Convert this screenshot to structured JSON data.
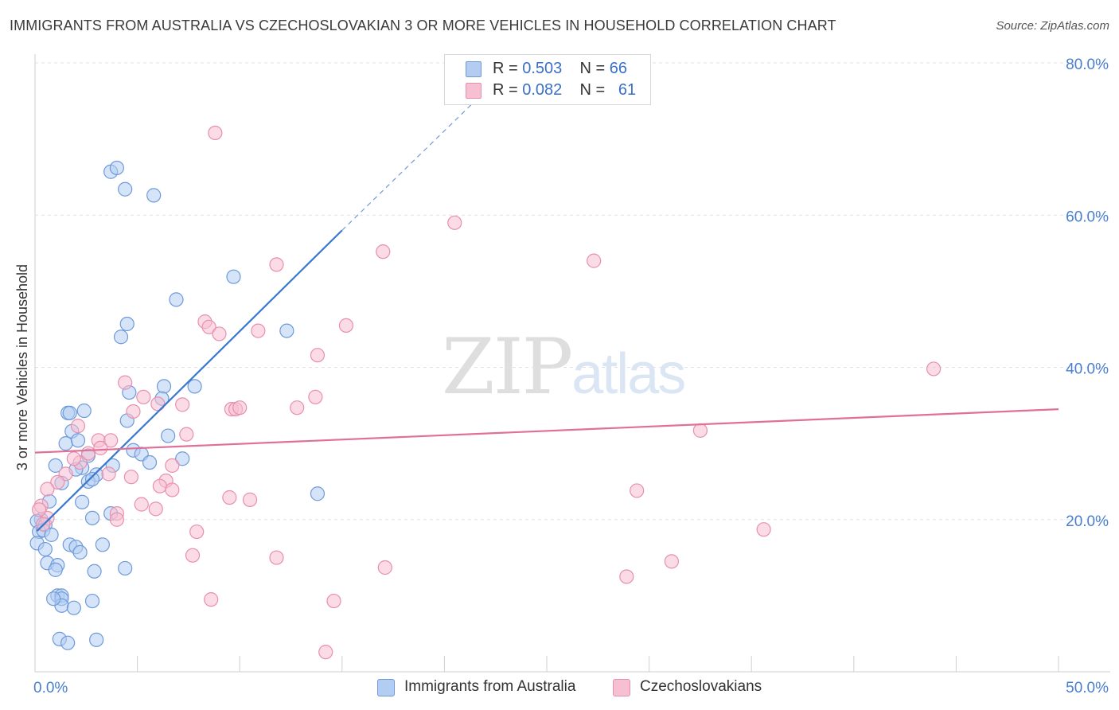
{
  "header": {
    "title": "IMMIGRANTS FROM AUSTRALIA VS CZECHOSLOVAKIAN 3 OR MORE VEHICLES IN HOUSEHOLD CORRELATION CHART",
    "source": "Source: ZipAtlas.com"
  },
  "watermark": {
    "zip": "ZIP",
    "atlas": "atlas"
  },
  "legend": {
    "rows": [
      {
        "r_label": "R = ",
        "r_value": "0.503",
        "n_label": "N = ",
        "n_value": "66"
      },
      {
        "r_label": "R = ",
        "r_value": "0.082",
        "n_label": "N = ",
        "n_value": "61"
      }
    ]
  },
  "bottom_legend": {
    "series1": "Immigrants from Australia",
    "series2": "Czechoslovakians"
  },
  "colors": {
    "blue_fill": "#b3cdf2",
    "blue_stroke": "#6f9ad8",
    "blue_line": "#3a78d0",
    "pink_fill": "#f7c0d2",
    "pink_stroke": "#e88fae",
    "pink_line": "#e07098",
    "axis_text": "#4a7fcf",
    "grid": "#e2e2e2"
  },
  "chart_data": {
    "type": "scatter",
    "title": "IMMIGRANTS FROM AUSTRALIA VS CZECHOSLOVAKIAN 3 OR MORE VEHICLES IN HOUSEHOLD CORRELATION CHART",
    "xlabel": "",
    "ylabel": "3 or more Vehicles in Household",
    "xlim": [
      0,
      50
    ],
    "ylim": [
      0,
      80
    ],
    "x_tick_labels": [
      "0.0%",
      "50.0%"
    ],
    "y_ticks": [
      20,
      40,
      60,
      80
    ],
    "y_tick_labels": [
      "20.0%",
      "40.0%",
      "60.0%",
      "80.0%"
    ],
    "series": [
      {
        "name": "Immigrants from Australia",
        "color": "#6f9ad8",
        "r": 0.503,
        "n": 66,
        "trend": {
          "x0": 0.1,
          "y0": 18.5,
          "x1": 15.0,
          "y1": 58.0,
          "dash_x1": 21.5,
          "dash_y1": 75.0
        },
        "points": [
          [
            3.7,
            65.7
          ],
          [
            4.0,
            66.2
          ],
          [
            4.4,
            63.4
          ],
          [
            5.8,
            62.6
          ],
          [
            9.7,
            51.9
          ],
          [
            6.9,
            48.9
          ],
          [
            4.5,
            45.7
          ],
          [
            4.2,
            44.0
          ],
          [
            12.3,
            44.8
          ],
          [
            4.6,
            36.7
          ],
          [
            6.3,
            37.5
          ],
          [
            7.8,
            37.5
          ],
          [
            6.2,
            35.9
          ],
          [
            1.6,
            34.0
          ],
          [
            1.7,
            34.0
          ],
          [
            2.4,
            34.3
          ],
          [
            4.5,
            33.0
          ],
          [
            1.8,
            31.6
          ],
          [
            6.5,
            31.0
          ],
          [
            1.5,
            30.0
          ],
          [
            2.1,
            30.4
          ],
          [
            4.8,
            29.1
          ],
          [
            5.2,
            28.6
          ],
          [
            7.2,
            28.0
          ],
          [
            2.6,
            28.4
          ],
          [
            5.6,
            27.5
          ],
          [
            1.0,
            27.1
          ],
          [
            2.3,
            26.8
          ],
          [
            3.8,
            27.1
          ],
          [
            2.0,
            26.6
          ],
          [
            3.0,
            25.9
          ],
          [
            2.6,
            25.0
          ],
          [
            2.8,
            25.3
          ],
          [
            1.3,
            24.8
          ],
          [
            13.8,
            23.4
          ],
          [
            0.7,
            22.4
          ],
          [
            2.3,
            22.3
          ],
          [
            3.7,
            20.8
          ],
          [
            2.8,
            20.2
          ],
          [
            0.3,
            20.0
          ],
          [
            0.1,
            19.8
          ],
          [
            0.5,
            19.3
          ],
          [
            0.2,
            18.4
          ],
          [
            0.4,
            18.6
          ],
          [
            0.8,
            18.0
          ],
          [
            0.1,
            16.9
          ],
          [
            0.5,
            16.1
          ],
          [
            1.7,
            16.7
          ],
          [
            2.0,
            16.4
          ],
          [
            3.3,
            16.7
          ],
          [
            2.2,
            15.7
          ],
          [
            0.6,
            14.3
          ],
          [
            1.1,
            14.0
          ],
          [
            1.0,
            13.4
          ],
          [
            2.9,
            13.2
          ],
          [
            4.4,
            13.6
          ],
          [
            1.1,
            10.0
          ],
          [
            1.3,
            10.0
          ],
          [
            1.3,
            9.6
          ],
          [
            2.8,
            9.3
          ],
          [
            1.3,
            8.7
          ],
          [
            1.9,
            8.4
          ],
          [
            1.2,
            4.3
          ],
          [
            1.6,
            3.8
          ],
          [
            3.0,
            4.2
          ],
          [
            0.9,
            9.6
          ]
        ]
      },
      {
        "name": "Czechoslovakians",
        "color": "#e88fae",
        "r": 0.082,
        "n": 61,
        "trend": {
          "x0": 0.0,
          "y0": 28.8,
          "x1": 50.0,
          "y1": 34.5
        },
        "points": [
          [
            8.8,
            70.8
          ],
          [
            20.5,
            59.0
          ],
          [
            17.0,
            55.2
          ],
          [
            27.3,
            54.0
          ],
          [
            11.8,
            53.5
          ],
          [
            8.3,
            46.0
          ],
          [
            8.5,
            45.3
          ],
          [
            9.0,
            44.4
          ],
          [
            10.9,
            44.8
          ],
          [
            15.2,
            45.5
          ],
          [
            13.8,
            41.6
          ],
          [
            4.4,
            38.0
          ],
          [
            43.9,
            39.8
          ],
          [
            5.3,
            36.1
          ],
          [
            6.0,
            35.2
          ],
          [
            7.2,
            35.1
          ],
          [
            9.6,
            34.5
          ],
          [
            9.8,
            34.5
          ],
          [
            10.0,
            34.7
          ],
          [
            12.8,
            34.7
          ],
          [
            13.7,
            36.1
          ],
          [
            4.8,
            34.2
          ],
          [
            7.4,
            31.2
          ],
          [
            2.1,
            32.3
          ],
          [
            32.5,
            31.7
          ],
          [
            3.1,
            30.4
          ],
          [
            3.7,
            30.4
          ],
          [
            2.2,
            27.5
          ],
          [
            1.9,
            28.0
          ],
          [
            2.6,
            28.7
          ],
          [
            3.2,
            29.4
          ],
          [
            6.7,
            27.1
          ],
          [
            1.5,
            26.0
          ],
          [
            3.6,
            26.0
          ],
          [
            4.7,
            25.6
          ],
          [
            6.4,
            25.1
          ],
          [
            1.1,
            24.9
          ],
          [
            6.1,
            24.4
          ],
          [
            6.7,
            23.9
          ],
          [
            9.5,
            22.9
          ],
          [
            10.5,
            22.6
          ],
          [
            29.4,
            23.8
          ],
          [
            0.6,
            24.0
          ],
          [
            5.2,
            22.0
          ],
          [
            5.9,
            21.4
          ],
          [
            0.3,
            21.8
          ],
          [
            4.0,
            20.8
          ],
          [
            4.0,
            20.0
          ],
          [
            0.6,
            20.2
          ],
          [
            0.4,
            19.4
          ],
          [
            7.9,
            18.4
          ],
          [
            35.6,
            18.7
          ],
          [
            7.7,
            15.3
          ],
          [
            11.8,
            15.0
          ],
          [
            17.1,
            13.7
          ],
          [
            31.1,
            14.5
          ],
          [
            28.9,
            12.5
          ],
          [
            8.6,
            9.5
          ],
          [
            14.6,
            9.3
          ],
          [
            14.2,
            2.6
          ],
          [
            0.2,
            21.3
          ]
        ]
      }
    ]
  }
}
